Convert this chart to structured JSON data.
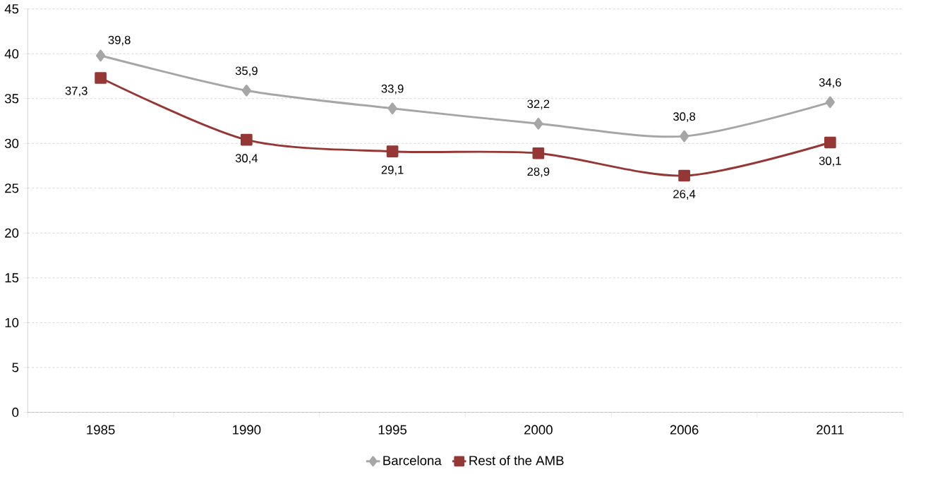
{
  "chart_data": {
    "type": "line",
    "categories": [
      "1985",
      "1990",
      "1995",
      "2000",
      "2006",
      "2011"
    ],
    "series": [
      {
        "name": "Barcelona",
        "color": "#a6a6a6",
        "marker": "diamond",
        "values": [
          39.8,
          35.9,
          33.9,
          32.2,
          30.8,
          34.6
        ],
        "value_labels": [
          "39,8",
          "35,9",
          "33,9",
          "32,2",
          "30,8",
          "34,6"
        ]
      },
      {
        "name": "Rest of the AMB",
        "color": "#953735",
        "marker": "square",
        "values": [
          37.3,
          30.4,
          29.1,
          28.9,
          26.4,
          30.1
        ],
        "value_labels": [
          "37,3",
          "30,4",
          "29,1",
          "28,9",
          "26,4",
          "30,1"
        ]
      }
    ],
    "ylim": [
      0,
      45
    ],
    "yticks": [
      0,
      5,
      10,
      15,
      20,
      25,
      30,
      35,
      40,
      45
    ],
    "grid": "y",
    "legend": "bottom",
    "line_style": "solid"
  }
}
